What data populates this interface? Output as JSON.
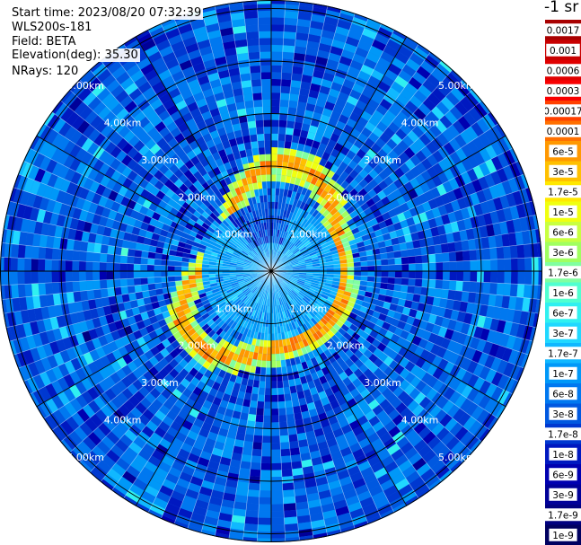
{
  "info": {
    "start_time": "Start time: 2023/08/20 07:32:39",
    "site": "WLS200s-181",
    "field": "Field: BETA",
    "elevation": "Elevation(deg): 35.30",
    "nrays": "NRays: 120"
  },
  "chart_data": {
    "type": "heatmap",
    "projection": "polar PPI",
    "field": "BETA",
    "units_label": "-1 sr",
    "nrays": 120,
    "range_rings_km": [
      1,
      2,
      3,
      4,
      5
    ],
    "ring_labels": [
      "1.00km",
      "2.00km",
      "3.00km",
      "4.00km",
      "5.00km"
    ],
    "color_scale": "log",
    "colorbar_ticks": [
      "0.0017",
      "0.001",
      "0.0006",
      "0.0003",
      "0.00017",
      "0.0001",
      "6e-5",
      "3e-5",
      "1.7e-5",
      "1e-5",
      "6e-6",
      "3e-6",
      "1.7e-6",
      "1e-6",
      "6e-7",
      "3e-7",
      "1.7e-7",
      "1e-7",
      "6e-8",
      "3e-8",
      "1.7e-8",
      "1e-8",
      "6e-9",
      "3e-9",
      "1.7e-9",
      "1e-9"
    ],
    "colorbar_colors": [
      "#a80000",
      "#c80000",
      "#e00000",
      "#f80000",
      "#ff4000",
      "#ff7000",
      "#ff9800",
      "#ffc000",
      "#ffe800",
      "#f0ff10",
      "#c8ff40",
      "#a0ff60",
      "#80ffa0",
      "#50ffd0",
      "#30f0f0",
      "#20d8ff",
      "#10b8ff",
      "#0098f8",
      "#0078f0",
      "#0058e0",
      "#0038d0",
      "#0018c0",
      "#0000b0",
      "#000098",
      "#000080",
      "#000060"
    ]
  }
}
